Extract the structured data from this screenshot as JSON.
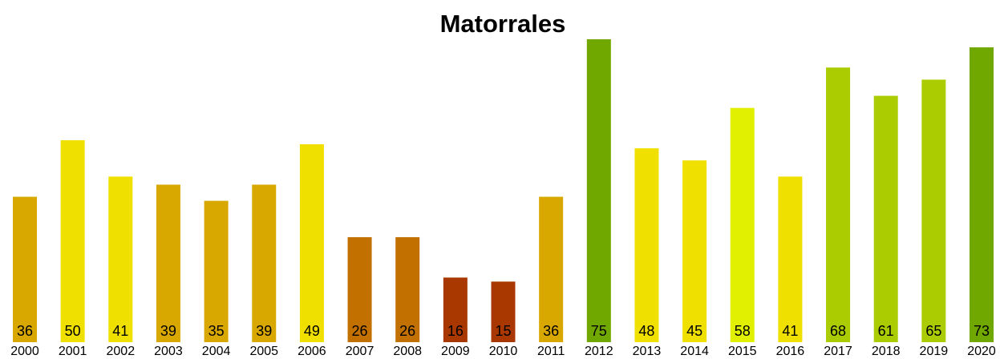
{
  "chart_data": {
    "type": "bar",
    "title": "Matorrales",
    "categories": [
      "2000",
      "2001",
      "2002",
      "2003",
      "2004",
      "2005",
      "2006",
      "2007",
      "2008",
      "2009",
      "2010",
      "2011",
      "2012",
      "2013",
      "2014",
      "2015",
      "2016",
      "2017",
      "2018",
      "2019",
      "2020"
    ],
    "values": [
      36,
      50,
      41,
      39,
      35,
      39,
      49,
      26,
      26,
      16,
      15,
      36,
      75,
      48,
      45,
      58,
      41,
      68,
      61,
      65,
      73
    ],
    "colors": [
      "#d9a800",
      "#f0e000",
      "#f0e000",
      "#d9a800",
      "#d9a800",
      "#d9a800",
      "#f0e000",
      "#c27000",
      "#c27000",
      "#a83800",
      "#a83800",
      "#d9a800",
      "#70a800",
      "#f0e000",
      "#f0e000",
      "#e0f000",
      "#f0e000",
      "#aacc00",
      "#aacc00",
      "#aacc00",
      "#70a800"
    ]
  }
}
